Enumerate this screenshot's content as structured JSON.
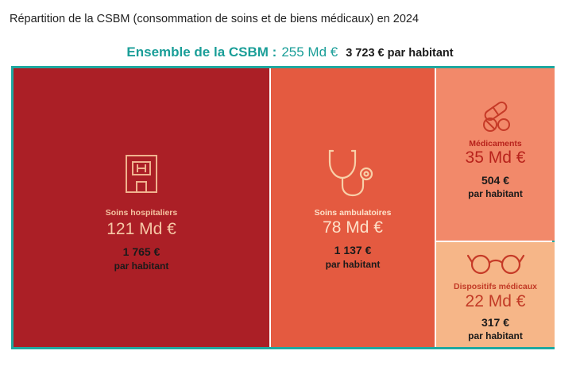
{
  "title": "Répartition de la CSBM (consommation de soins et de biens médicaux) en 2024",
  "total": {
    "label": "Ensemble de la CSBM :",
    "value": "255 Md €",
    "per_capita": "3 723 € par habitant"
  },
  "colors": {
    "accent": "#1fa8a0",
    "hospital": "#ab1f26",
    "ambulatory": "#e45a40",
    "medication": "#f2896a",
    "devices": "#f6b688"
  },
  "chart_data": {
    "type": "treemap",
    "title": "Répartition de la CSBM (consommation de soins et de biens médicaux) en 2024",
    "total_label": "Ensemble de la CSBM :",
    "total_value": 255,
    "total_unit": "Md €",
    "total_per_capita": 3723,
    "items": [
      {
        "name": "Soins hospitaliers",
        "value": 121,
        "value_label": "121 Md €",
        "per_capita": "1 765 €",
        "per_capita_label": "par habitant",
        "icon": "hospital-icon"
      },
      {
        "name": "Soins ambulatoires",
        "value": 78,
        "value_label": "78 Md €",
        "per_capita": "1 137 €",
        "per_capita_label": "par habitant",
        "icon": "stethoscope-icon"
      },
      {
        "name": "Médicaments",
        "value": 35,
        "value_label": "35 Md €",
        "per_capita": "504 €",
        "per_capita_label": "par habitant",
        "icon": "pills-icon"
      },
      {
        "name": "Dispositifs médicaux",
        "value": 22,
        "value_label": "22 Md €",
        "per_capita": "317 €",
        "per_capita_label": "par habitant",
        "icon": "glasses-icon"
      }
    ]
  }
}
